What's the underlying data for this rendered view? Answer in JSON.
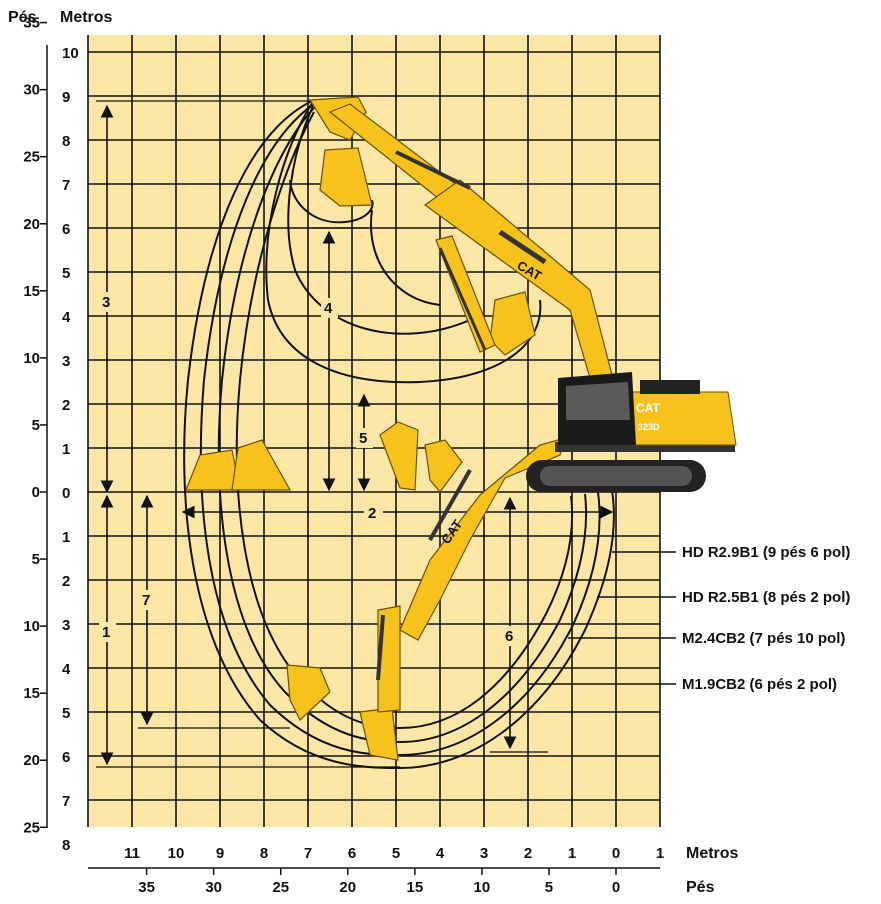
{
  "header": {
    "feet_label": "Pés",
    "meters_label": "Metros"
  },
  "left_axis": {
    "feet_ticks": [
      "35",
      "30",
      "25",
      "20",
      "15",
      "10",
      "5",
      "0",
      "5",
      "10",
      "15",
      "20",
      "25"
    ],
    "meter_ticks": [
      "10",
      "9",
      "8",
      "7",
      "6",
      "5",
      "4",
      "3",
      "2",
      "1",
      "0",
      "1",
      "2",
      "3",
      "4",
      "5",
      "6",
      "7",
      "8"
    ]
  },
  "bottom_axis": {
    "meters_ticks": [
      "11",
      "10",
      "9",
      "8",
      "7",
      "6",
      "5",
      "4",
      "3",
      "2",
      "1",
      "0",
      "1"
    ],
    "meters_label": "Metros",
    "feet_ticks": [
      "35",
      "30",
      "25",
      "20",
      "15",
      "10",
      "5",
      "0"
    ],
    "feet_label": "Pés"
  },
  "dimensions": [
    "1",
    "2",
    "3",
    "4",
    "5",
    "6",
    "7"
  ],
  "legend": [
    "HD R2.9B1 (9 pés 6 pol)",
    "HD R2.5B1 (8 pés 2 pol)",
    "M2.4CB2 (7 pés 10 pol)",
    "M1.9CB2 (6 pés 2 pol)"
  ],
  "machine": {
    "brand": "CAT",
    "model": "323D"
  },
  "colors": {
    "grid_bg": "#FCE7A6",
    "grid_line": "#111111",
    "machine_yellow": "#F6C21B",
    "envelope": "#111111"
  }
}
